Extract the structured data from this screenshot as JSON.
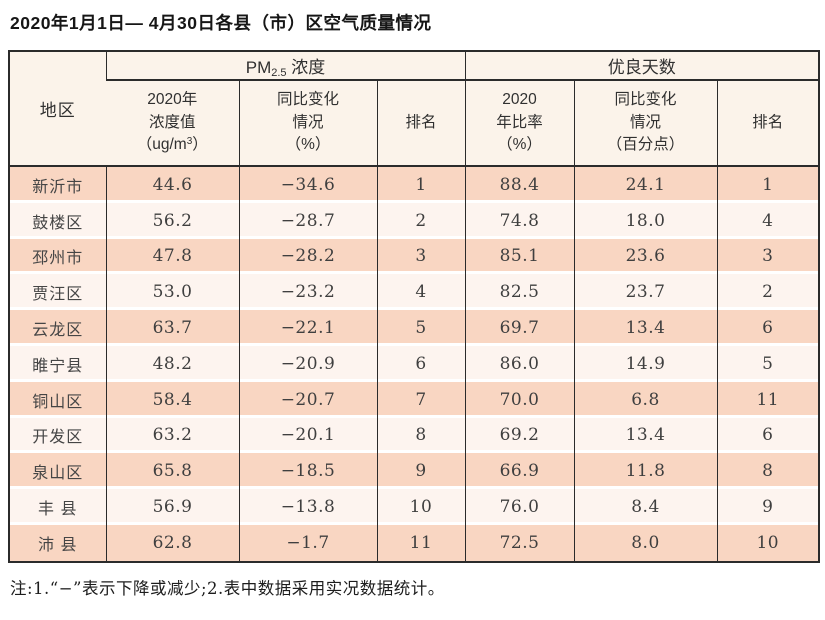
{
  "title": "2020年1月1日— 4月30日各县（市）区空气质量情况",
  "note": "注:1.“−”表示下降或减少;2.表中数据采用实况数据统计。",
  "colors": {
    "band": "#f9d6c2",
    "light": "#fdf4ef",
    "header_bg": "#fbf3ea",
    "border": "#2b2b2b",
    "text": "#3f3f3f",
    "title_color": "#161616"
  },
  "table": {
    "headers": {
      "area": "地区",
      "pm_group": {
        "pre": "PM",
        "sub": "2.5",
        "post": " 浓度"
      },
      "days_group": "优良天数",
      "pm_value": {
        "line1": "2020年",
        "line2": "浓度值",
        "line3_pre": "（ug/m",
        "line3_sup": "3",
        "line3_post": "）"
      },
      "pm_change": {
        "line1": "同比变化",
        "line2": "情况",
        "line3": "（%）"
      },
      "pm_rank": "排名",
      "days_ratio": {
        "line1": "2020",
        "line2": "年比率",
        "line3": "（%）"
      },
      "days_change": {
        "line1": "同比变化",
        "line2": "情况",
        "line3": "（百分点）"
      },
      "days_rank": "排名"
    },
    "rows": [
      {
        "area": "新沂市",
        "pm_value": "44.6",
        "pm_change": "−34.6",
        "pm_rank": "1",
        "days_ratio": "88.4",
        "days_change": "24.1",
        "days_rank": "1"
      },
      {
        "area": "鼓楼区",
        "pm_value": "56.2",
        "pm_change": "−28.7",
        "pm_rank": "2",
        "days_ratio": "74.8",
        "days_change": "18.0",
        "days_rank": "4"
      },
      {
        "area": "邳州市",
        "pm_value": "47.8",
        "pm_change": "−28.2",
        "pm_rank": "3",
        "days_ratio": "85.1",
        "days_change": "23.6",
        "days_rank": "3"
      },
      {
        "area": "贾汪区",
        "pm_value": "53.0",
        "pm_change": "−23.2",
        "pm_rank": "4",
        "days_ratio": "82.5",
        "days_change": "23.7",
        "days_rank": "2"
      },
      {
        "area": "云龙区",
        "pm_value": "63.7",
        "pm_change": "−22.1",
        "pm_rank": "5",
        "days_ratio": "69.7",
        "days_change": "13.4",
        "days_rank": "6"
      },
      {
        "area": "睢宁县",
        "pm_value": "48.2",
        "pm_change": "−20.9",
        "pm_rank": "6",
        "days_ratio": "86.0",
        "days_change": "14.9",
        "days_rank": "5"
      },
      {
        "area": "铜山区",
        "pm_value": "58.4",
        "pm_change": "−20.7",
        "pm_rank": "7",
        "days_ratio": "70.0",
        "days_change": "6.8",
        "days_rank": "11"
      },
      {
        "area": "开发区",
        "pm_value": "63.2",
        "pm_change": "−20.1",
        "pm_rank": "8",
        "days_ratio": "69.2",
        "days_change": "13.4",
        "days_rank": "6"
      },
      {
        "area": "泉山区",
        "pm_value": "65.8",
        "pm_change": "−18.5",
        "pm_rank": "9",
        "days_ratio": "66.9",
        "days_change": "11.8",
        "days_rank": "8"
      },
      {
        "area": "丰 县",
        "pm_value": "56.9",
        "pm_change": "−13.8",
        "pm_rank": "10",
        "days_ratio": "76.0",
        "days_change": "8.4",
        "days_rank": "9"
      },
      {
        "area": "沛 县",
        "pm_value": "62.8",
        "pm_change": "−1.7",
        "pm_rank": "11",
        "days_ratio": "72.5",
        "days_change": "8.0",
        "days_rank": "10"
      }
    ]
  }
}
